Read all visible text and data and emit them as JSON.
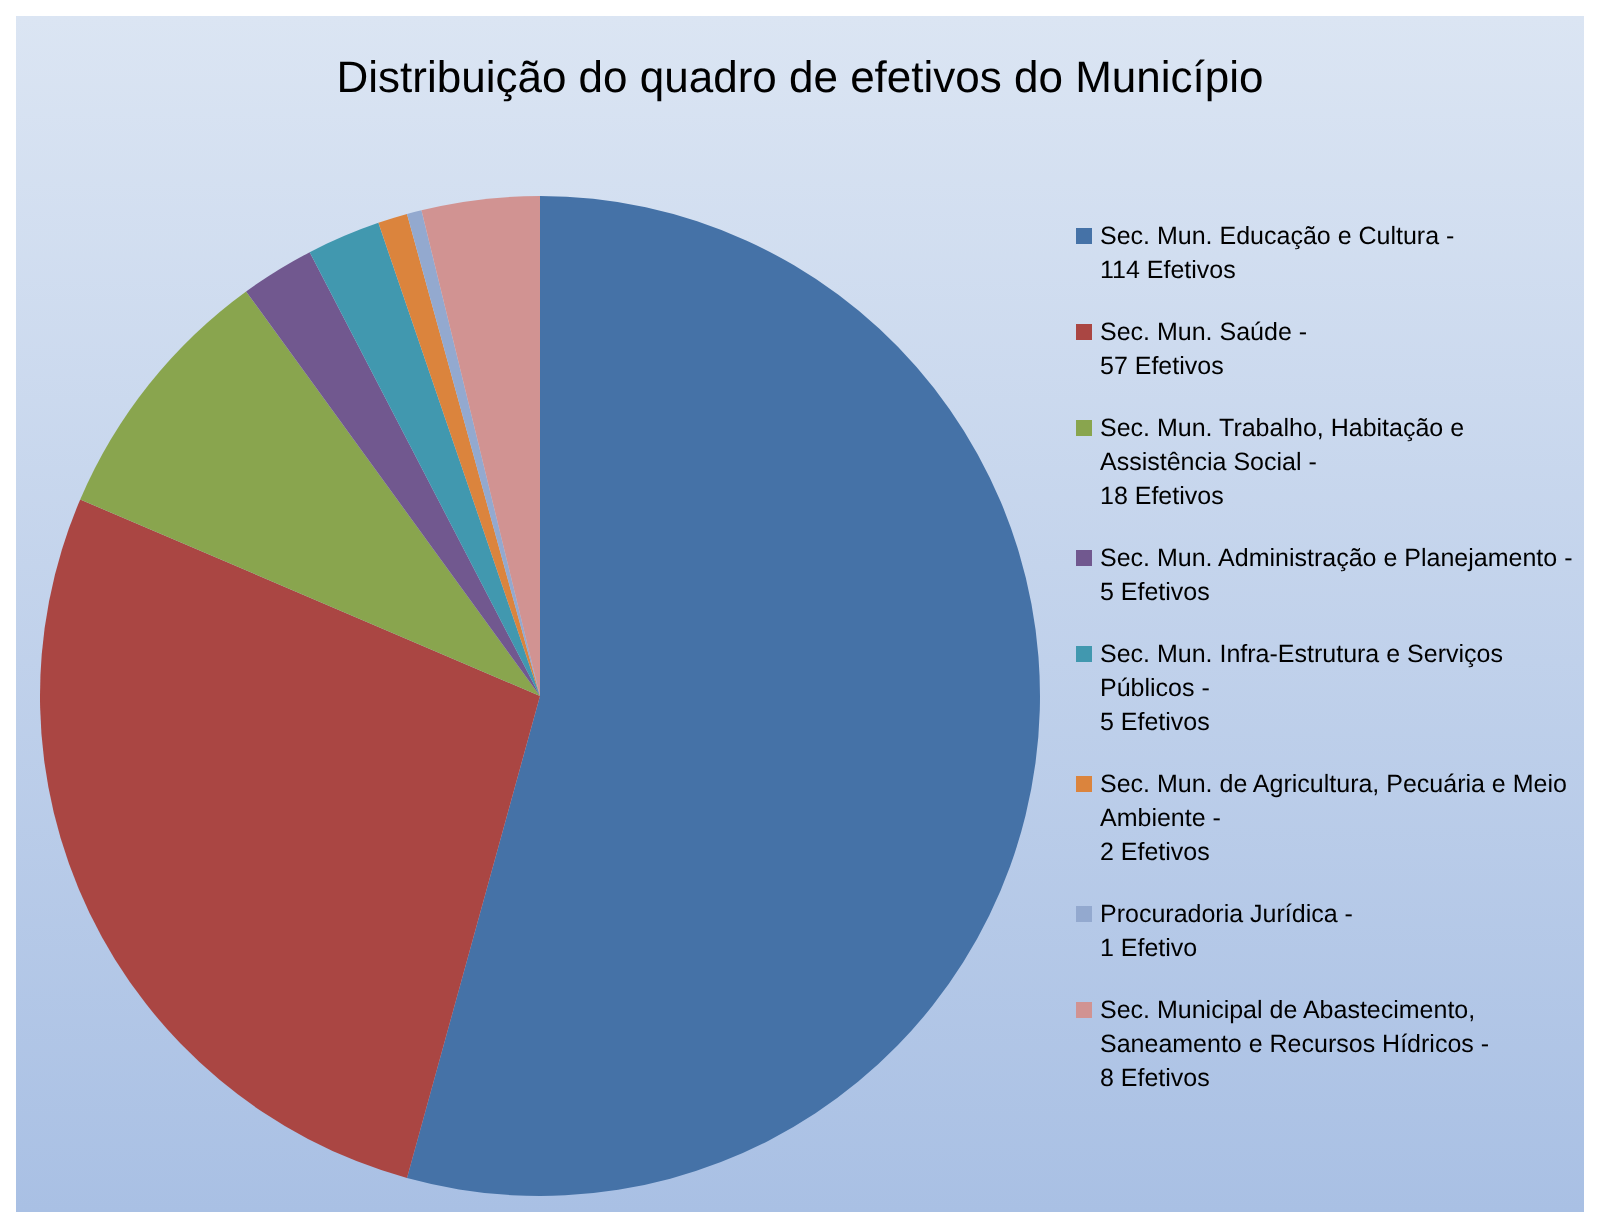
{
  "chart_data": {
    "type": "pie",
    "title": "Distribuição do quadro de efetivos do Município",
    "categories": [
      "Sec. Mun. Educação e Cultura -",
      "Sec. Mun. Saúde -",
      "Sec. Mun. Trabalho, Habitação e Assistência Social -",
      "Sec. Mun. Administração e Planejamento -",
      "Sec. Mun. Infra-Estrutura e Serviços Públicos -",
      "Sec. Mun. de Agricultura, Pecuária e Meio Ambiente -",
      "Procuradoria Jurídica -",
      "Sec. Municipal de Abastecimento, Saneamento e Recursos Hídricos -"
    ],
    "values": [
      114,
      57,
      18,
      5,
      5,
      2,
      1,
      8
    ],
    "value_labels": [
      "114 Efetivos",
      "57 Efetivos",
      "18 Efetivos",
      "5 Efetivos",
      "5 Efetivos",
      "2 Efetivos",
      "1 Efetivo",
      "8 Efetivos"
    ],
    "colors": [
      "#4572a7",
      "#aa4643",
      "#89a54e",
      "#71588f",
      "#4198af",
      "#db843d",
      "#93a9cf",
      "#d19392"
    ],
    "legend": "right"
  }
}
